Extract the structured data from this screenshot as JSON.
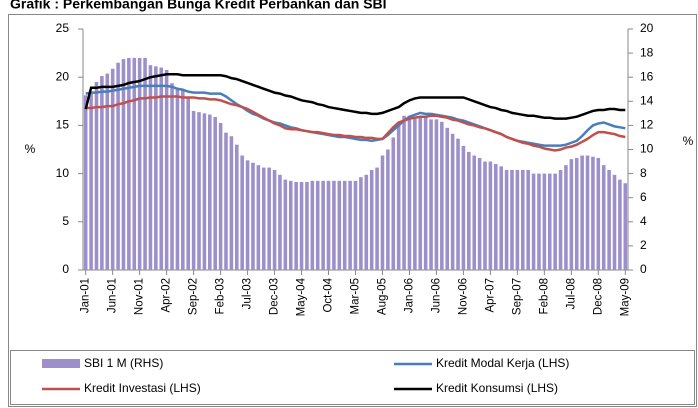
{
  "chart_data": {
    "type": "bar",
    "title": "Grafik : Perkembangan Bunga Kredit Perbankan dan SBI",
    "y_label": "%",
    "y2_label": "%",
    "categories": [
      "Jan-01",
      null,
      null,
      null,
      null,
      "Jun-01",
      null,
      null,
      null,
      null,
      "Nov-01",
      null,
      null,
      null,
      null,
      "Apr-02",
      null,
      null,
      null,
      null,
      "Sep-02",
      null,
      null,
      null,
      null,
      "Feb-03",
      null,
      null,
      null,
      null,
      "Jul-03",
      null,
      null,
      null,
      null,
      "Dec-03",
      null,
      null,
      null,
      null,
      "May-04",
      null,
      null,
      null,
      null,
      "Oct-04",
      null,
      null,
      null,
      null,
      "Mar-05",
      null,
      null,
      null,
      null,
      "Aug-05",
      null,
      null,
      null,
      null,
      "Jan-06",
      null,
      null,
      null,
      null,
      "Jun-06",
      null,
      null,
      null,
      null,
      "Nov-06",
      null,
      null,
      null,
      null,
      "Apr-07",
      null,
      null,
      null,
      null,
      "Sep-07",
      null,
      null,
      null,
      null,
      "Feb-08",
      null,
      null,
      null,
      null,
      "Jul-08",
      null,
      null,
      null,
      null,
      "Dec-08",
      null,
      null,
      null,
      null,
      "May-09"
    ],
    "series": [
      {
        "name": "SBI 1 M (RHS)",
        "type": "bar",
        "axis": "y2",
        "color": "#9d8fc9",
        "values": [
          14.5,
          14.8,
          15.6,
          16.1,
          16.3,
          16.7,
          17.2,
          17.5,
          17.6,
          17.6,
          17.6,
          17.6,
          17.0,
          16.9,
          16.8,
          16.6,
          15.5,
          15.1,
          14.9,
          14.4,
          13.2,
          13.1,
          13.0,
          12.9,
          12.7,
          12.2,
          11.4,
          11.1,
          10.4,
          9.5,
          9.1,
          8.9,
          8.7,
          8.5,
          8.5,
          8.3,
          7.9,
          7.5,
          7.4,
          7.3,
          7.3,
          7.3,
          7.4,
          7.4,
          7.4,
          7.4,
          7.4,
          7.4,
          7.4,
          7.4,
          7.4,
          7.7,
          7.9,
          8.3,
          8.5,
          9.5,
          10.0,
          11.0,
          12.3,
          12.8,
          12.8,
          12.7,
          12.7,
          12.7,
          12.5,
          12.5,
          12.3,
          11.8,
          11.3,
          10.9,
          10.3,
          9.8,
          9.5,
          9.3,
          9.0,
          9.0,
          8.8,
          8.6,
          8.3,
          8.3,
          8.3,
          8.3,
          8.3,
          8.0,
          8.0,
          8.0,
          8.0,
          8.0,
          8.3,
          8.7,
          9.2,
          9.3,
          9.5,
          9.5,
          9.4,
          9.3,
          8.7,
          8.3,
          7.9,
          7.5,
          7.2
        ]
      },
      {
        "name": "Kredit Modal Kerja (LHS)",
        "type": "line",
        "color": "#4a7ebb",
        "values": [
          18.3,
          18.4,
          18.4,
          18.5,
          18.5,
          18.6,
          18.7,
          18.8,
          18.9,
          19.0,
          19.1,
          19.1,
          19.1,
          19.1,
          19.1,
          19.1,
          19.0,
          18.8,
          18.7,
          18.5,
          18.4,
          18.4,
          18.4,
          18.3,
          18.3,
          18.3,
          18.0,
          17.6,
          17.2,
          16.9,
          16.5,
          16.2,
          16.0,
          15.7,
          15.5,
          15.3,
          15.2,
          15.0,
          14.8,
          14.7,
          14.5,
          14.4,
          14.3,
          14.2,
          14.1,
          14.0,
          13.9,
          13.8,
          13.8,
          13.7,
          13.6,
          13.5,
          13.5,
          13.4,
          13.5,
          13.6,
          14.0,
          14.5,
          15.0,
          15.5,
          15.9,
          16.1,
          16.3,
          16.2,
          16.2,
          16.1,
          16.0,
          15.9,
          15.8,
          15.6,
          15.5,
          15.3,
          15.1,
          14.9,
          14.7,
          14.5,
          14.3,
          14.1,
          13.8,
          13.6,
          13.4,
          13.3,
          13.2,
          13.1,
          13.0,
          12.9,
          12.9,
          12.9,
          12.9,
          13.0,
          13.2,
          13.4,
          13.9,
          14.5,
          15.0,
          15.2,
          15.3,
          15.1,
          14.9,
          14.8,
          14.7
        ]
      },
      {
        "name": "Kredit Investasi (LHS)",
        "type": "line",
        "color": "#c0504d",
        "values": [
          16.8,
          16.8,
          16.9,
          16.9,
          17.0,
          17.0,
          17.2,
          17.3,
          17.5,
          17.6,
          17.8,
          17.8,
          17.9,
          17.9,
          18.0,
          18.0,
          18.0,
          18.0,
          17.9,
          17.9,
          17.9,
          17.8,
          17.8,
          17.7,
          17.7,
          17.6,
          17.4,
          17.2,
          17.1,
          16.9,
          16.7,
          16.4,
          16.1,
          15.8,
          15.5,
          15.2,
          15.0,
          14.7,
          14.6,
          14.6,
          14.5,
          14.4,
          14.3,
          14.3,
          14.2,
          14.1,
          14.0,
          14.0,
          13.9,
          13.9,
          13.8,
          13.8,
          13.7,
          13.7,
          13.6,
          13.6,
          14.2,
          14.8,
          15.3,
          15.5,
          15.7,
          15.8,
          15.9,
          15.9,
          16.0,
          16.0,
          15.9,
          15.8,
          15.6,
          15.5,
          15.3,
          15.1,
          15.0,
          14.8,
          14.7,
          14.5,
          14.3,
          14.1,
          13.8,
          13.6,
          13.4,
          13.2,
          13.1,
          12.9,
          12.8,
          12.6,
          12.5,
          12.4,
          12.5,
          12.7,
          12.8,
          13.0,
          13.3,
          13.6,
          14.0,
          14.3,
          14.3,
          14.2,
          14.1,
          13.9,
          13.8
        ]
      },
      {
        "name": "Kredit Konsumsi (LHS)",
        "type": "line",
        "color": "#000000",
        "values": [
          16.7,
          18.9,
          18.9,
          19.0,
          19.0,
          19.0,
          19.1,
          19.2,
          19.4,
          19.5,
          19.6,
          19.8,
          20.0,
          20.1,
          20.2,
          20.3,
          20.3,
          20.3,
          20.2,
          20.2,
          20.2,
          20.2,
          20.2,
          20.2,
          20.2,
          20.2,
          20.1,
          19.9,
          19.8,
          19.6,
          19.4,
          19.2,
          19.0,
          18.8,
          18.6,
          18.4,
          18.3,
          18.1,
          18.0,
          17.8,
          17.6,
          17.5,
          17.4,
          17.2,
          17.1,
          16.9,
          16.8,
          16.7,
          16.6,
          16.5,
          16.4,
          16.3,
          16.3,
          16.2,
          16.2,
          16.3,
          16.5,
          16.7,
          16.9,
          17.3,
          17.6,
          17.8,
          17.9,
          17.9,
          17.9,
          17.9,
          17.9,
          17.9,
          17.9,
          17.9,
          17.9,
          17.7,
          17.5,
          17.3,
          17.1,
          16.9,
          16.8,
          16.6,
          16.5,
          16.3,
          16.2,
          16.1,
          16.0,
          16.0,
          15.9,
          15.8,
          15.8,
          15.7,
          15.7,
          15.7,
          15.8,
          15.9,
          16.1,
          16.3,
          16.5,
          16.6,
          16.6,
          16.7,
          16.7,
          16.6,
          16.6
        ]
      }
    ],
    "ylim": [
      0,
      25
    ],
    "yticks": [
      0,
      5,
      10,
      15,
      20,
      25
    ],
    "y2lim": [
      0,
      20
    ],
    "y2ticks": [
      0,
      2,
      4,
      6,
      8,
      10,
      12,
      14,
      16,
      18,
      20
    ],
    "grid": false
  }
}
